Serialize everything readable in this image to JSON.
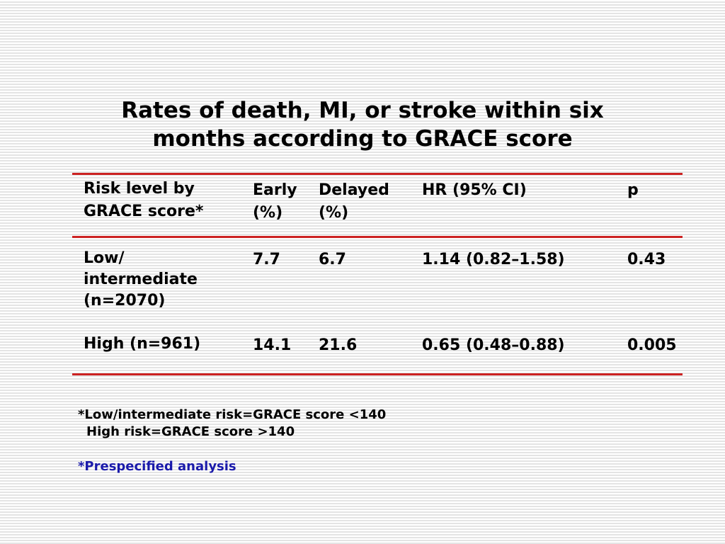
{
  "slide": {
    "title_line1": "Rates of death, MI, or stroke within six",
    "title_line2": "months according to GRACE score"
  },
  "table": {
    "headers": {
      "risk_line1": "Risk level by",
      "risk_line2": "GRACE score*",
      "early_line1": "Early",
      "early_line2": "(%)",
      "delayed_line1": "Delayed",
      "delayed_line2": "(%)",
      "hr": "HR (95% CI)",
      "p": "p"
    },
    "rows": [
      {
        "risk_line1": "Low/",
        "risk_line2": "intermediate",
        "risk_line3": "(n=2070)",
        "early": "7.7",
        "delayed": "6.7",
        "hr": "1.14 (0.82–1.58)",
        "p": "0.43"
      },
      {
        "risk_line1": "High (n=961)",
        "early": "14.1",
        "delayed": "21.6",
        "hr": "0.65 (0.48–0.88)",
        "p": "0.005"
      }
    ]
  },
  "footnotes": {
    "line1": "*Low/intermediate risk=GRACE score <140",
    "line2": "High risk=GRACE score >140",
    "line3": "*Prespecified analysis"
  },
  "colors": {
    "rule": "#cc2222",
    "footnote_accent": "#1a1aaa"
  }
}
